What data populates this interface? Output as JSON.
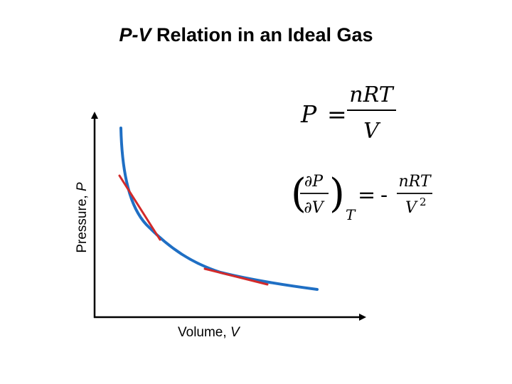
{
  "title": {
    "variable": "P-V",
    "rest": " Relation in an Ideal Gas"
  },
  "axes": {
    "y_label_text": "Pressure, ",
    "y_label_var": "P",
    "x_label_text": "Volume, ",
    "x_label_var": "V"
  },
  "equations": {
    "ideal_gas": {
      "lhs": "P",
      "equals": "=",
      "numerator": "nRT",
      "denominator": "V"
    },
    "derivative": {
      "partial_p": "∂P",
      "partial_v": "∂V",
      "subscript": "T",
      "equals": "=",
      "minus": "-",
      "numerator": "nRT",
      "denominator": "V",
      "exponent": "2"
    }
  },
  "colors": {
    "curve": "#1f6fc4",
    "tangent": "#d22a2a",
    "axis": "#000000"
  }
}
